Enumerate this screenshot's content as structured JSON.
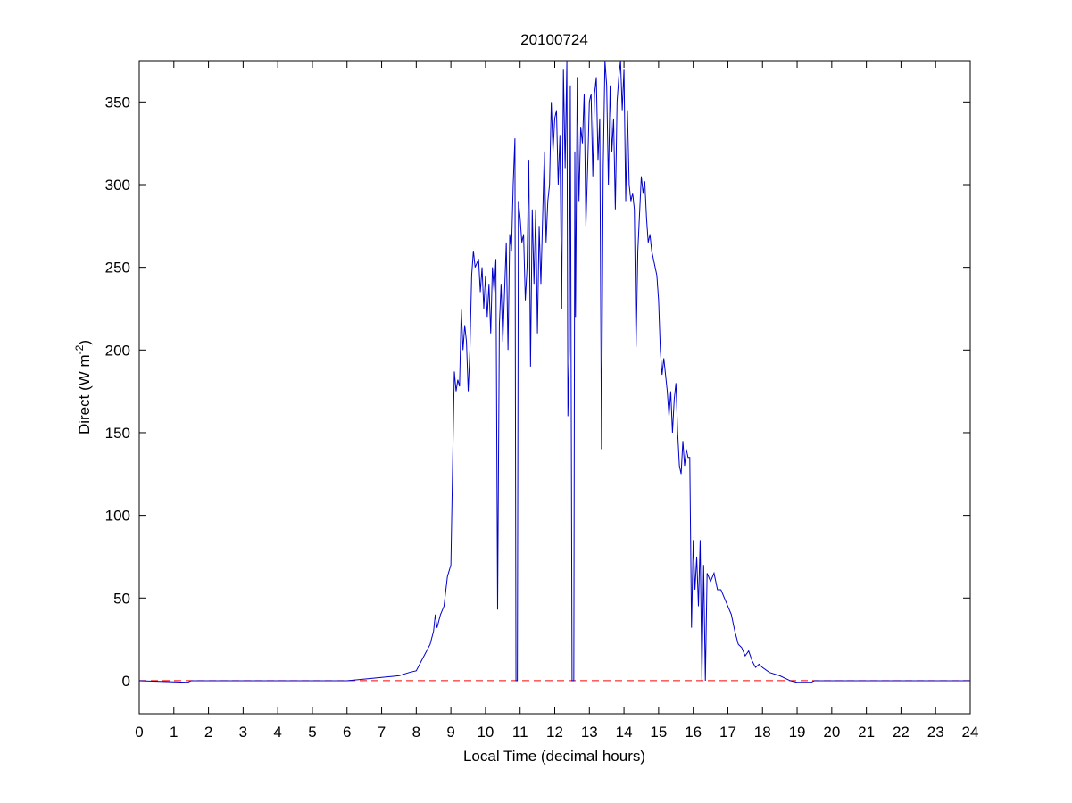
{
  "chart_data": {
    "type": "line",
    "title": "20100724",
    "xlabel": "Local Time (decimal hours)",
    "ylabel": {
      "text": "Direct (W m",
      "superscript": "-2",
      "suffix": ")"
    },
    "xlim": [
      0,
      24
    ],
    "xticks": [
      0,
      1,
      2,
      3,
      4,
      5,
      6,
      7,
      8,
      9,
      10,
      11,
      12,
      13,
      14,
      15,
      16,
      17,
      18,
      19,
      20,
      21,
      22,
      23,
      24
    ],
    "ylim": [
      -20,
      375
    ],
    "yticks": [
      0,
      50,
      100,
      150,
      200,
      250,
      300,
      350
    ],
    "reference_line": {
      "value": 0,
      "color": "#ff0000",
      "style": "dashed"
    },
    "x": [
      0,
      1.4,
      1.5,
      6,
      6.5,
      7,
      7.5,
      7.8,
      8.0,
      8.2,
      8.4,
      8.5,
      8.55,
      8.6,
      8.7,
      8.8,
      8.9,
      9.0,
      9.05,
      9.1,
      9.15,
      9.2,
      9.25,
      9.3,
      9.35,
      9.4,
      9.45,
      9.5,
      9.55,
      9.6,
      9.65,
      9.7,
      9.8,
      9.85,
      9.9,
      9.95,
      10.0,
      10.05,
      10.1,
      10.15,
      10.2,
      10.25,
      10.3,
      10.35,
      10.4,
      10.45,
      10.5,
      10.6,
      10.65,
      10.7,
      10.75,
      10.8,
      10.85,
      10.88,
      10.92,
      10.95,
      11.0,
      11.05,
      11.1,
      11.15,
      11.2,
      11.25,
      11.3,
      11.35,
      11.4,
      11.45,
      11.5,
      11.55,
      11.6,
      11.65,
      11.7,
      11.75,
      11.8,
      11.85,
      11.9,
      11.95,
      12.0,
      12.05,
      12.1,
      12.15,
      12.2,
      12.25,
      12.3,
      12.35,
      12.38,
      12.42,
      12.45,
      12.5,
      12.55,
      12.58,
      12.6,
      12.65,
      12.7,
      12.75,
      12.8,
      12.85,
      12.9,
      12.95,
      13.0,
      13.05,
      13.1,
      13.15,
      13.2,
      13.25,
      13.3,
      13.35,
      13.4,
      13.45,
      13.5,
      13.55,
      13.6,
      13.65,
      13.7,
      13.75,
      13.8,
      13.85,
      13.9,
      13.95,
      14.0,
      14.05,
      14.1,
      14.15,
      14.2,
      14.25,
      14.3,
      14.35,
      14.4,
      14.5,
      14.55,
      14.6,
      14.65,
      14.7,
      14.75,
      14.8,
      14.85,
      14.9,
      14.95,
      15.0,
      15.05,
      15.1,
      15.15,
      15.2,
      15.25,
      15.3,
      15.35,
      15.4,
      15.45,
      15.5,
      15.55,
      15.6,
      15.65,
      15.7,
      15.75,
      15.8,
      15.85,
      15.9,
      15.95,
      16.0,
      16.05,
      16.1,
      16.15,
      16.2,
      16.25,
      16.3,
      16.35,
      16.4,
      16.5,
      16.6,
      16.7,
      16.8,
      16.9,
      17.0,
      17.1,
      17.2,
      17.3,
      17.4,
      17.5,
      17.6,
      17.7,
      17.8,
      17.9,
      18.0,
      18.2,
      18.5,
      18.8,
      19.0,
      19.4,
      19.5,
      24
    ],
    "series": [
      {
        "color": "#0000cc",
        "values": [
          0,
          -1,
          0,
          0,
          1,
          2,
          3,
          5,
          6,
          14,
          22,
          30,
          40,
          32,
          40,
          45,
          63,
          70,
          130,
          187,
          175,
          182,
          178,
          225,
          200,
          215,
          205,
          175,
          200,
          245,
          260,
          250,
          255,
          235,
          250,
          225,
          245,
          220,
          240,
          210,
          250,
          235,
          255,
          43,
          215,
          240,
          205,
          265,
          200,
          270,
          260,
          300,
          328,
          0,
          0,
          290,
          280,
          265,
          270,
          230,
          250,
          315,
          190,
          285,
          240,
          285,
          210,
          275,
          240,
          280,
          320,
          265,
          290,
          300,
          350,
          320,
          340,
          345,
          300,
          330,
          225,
          370,
          310,
          375,
          160,
          200,
          360,
          0,
          0,
          320,
          220,
          365,
          290,
          335,
          325,
          355,
          275,
          310,
          350,
          355,
          305,
          355,
          365,
          315,
          340,
          140,
          310,
          375,
          360,
          300,
          360,
          320,
          340,
          285,
          350,
          365,
          375,
          345,
          370,
          290,
          345,
          300,
          290,
          295,
          285,
          202,
          260,
          305,
          295,
          302,
          280,
          265,
          270,
          260,
          255,
          250,
          245,
          230,
          200,
          185,
          195,
          185,
          175,
          160,
          175,
          150,
          170,
          180,
          150,
          130,
          125,
          145,
          130,
          140,
          135,
          135,
          32,
          85,
          55,
          75,
          45,
          85,
          0,
          70,
          0,
          65,
          60,
          65,
          55,
          55,
          50,
          45,
          40,
          30,
          22,
          20,
          15,
          18,
          12,
          8,
          10,
          8,
          5,
          3,
          0,
          -1,
          -1,
          0,
          0
        ]
      }
    ]
  }
}
